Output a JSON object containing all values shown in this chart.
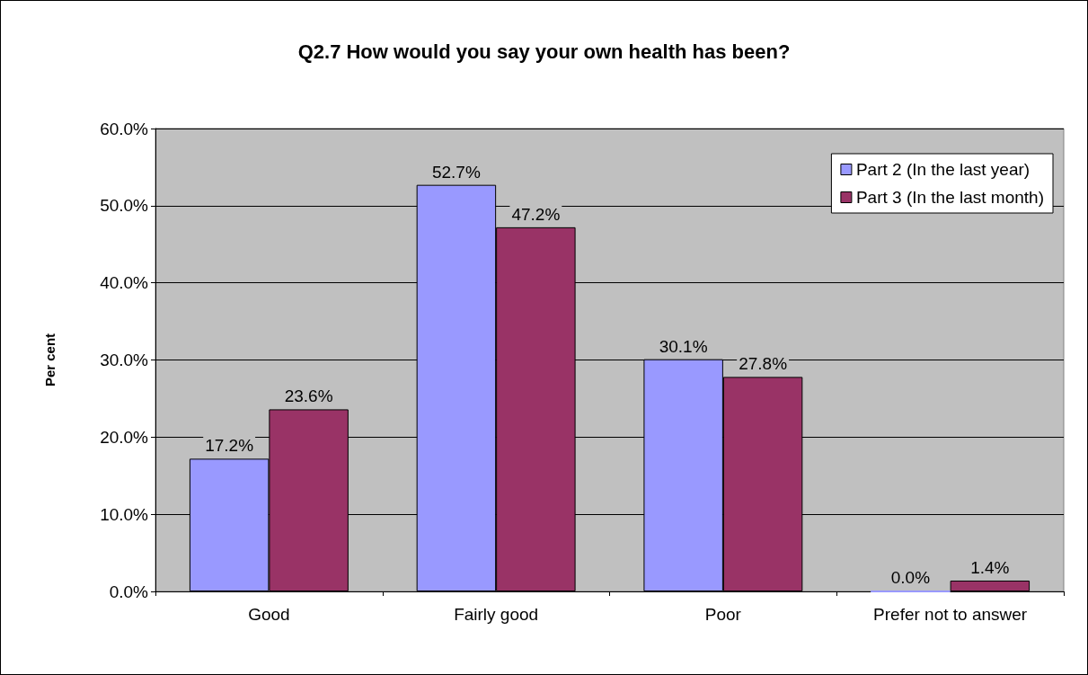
{
  "chart_data": {
    "type": "bar",
    "title": "Q2.7 How would you say your own health has been?",
    "ylabel": "Per cent",
    "categories": [
      "Good",
      "Fairly good",
      "Poor",
      "Prefer not to answer"
    ],
    "series": [
      {
        "name": "Part 2 (In the last year)",
        "color": "#9999ff",
        "values": [
          17.2,
          52.7,
          30.1,
          0.0
        ],
        "value_labels": [
          "17.2%",
          "52.7%",
          "30.1%",
          "0.0%"
        ]
      },
      {
        "name": "Part 3 (In the last month)",
        "color": "#993366",
        "values": [
          23.6,
          47.2,
          27.8,
          1.4
        ],
        "value_labels": [
          "23.6%",
          "47.2%",
          "27.8%",
          "1.4%"
        ]
      }
    ],
    "ylim": [
      0,
      60
    ],
    "yticks": [
      {
        "value": 0,
        "label": "0.0%"
      },
      {
        "value": 10,
        "label": "10.0%"
      },
      {
        "value": 20,
        "label": "20.0%"
      },
      {
        "value": 30,
        "label": "30.0%"
      },
      {
        "value": 40,
        "label": "40.0%"
      },
      {
        "value": 50,
        "label": "50.0%"
      },
      {
        "value": 60,
        "label": "60.0%"
      }
    ],
    "grid": "y",
    "legend": "top right"
  }
}
